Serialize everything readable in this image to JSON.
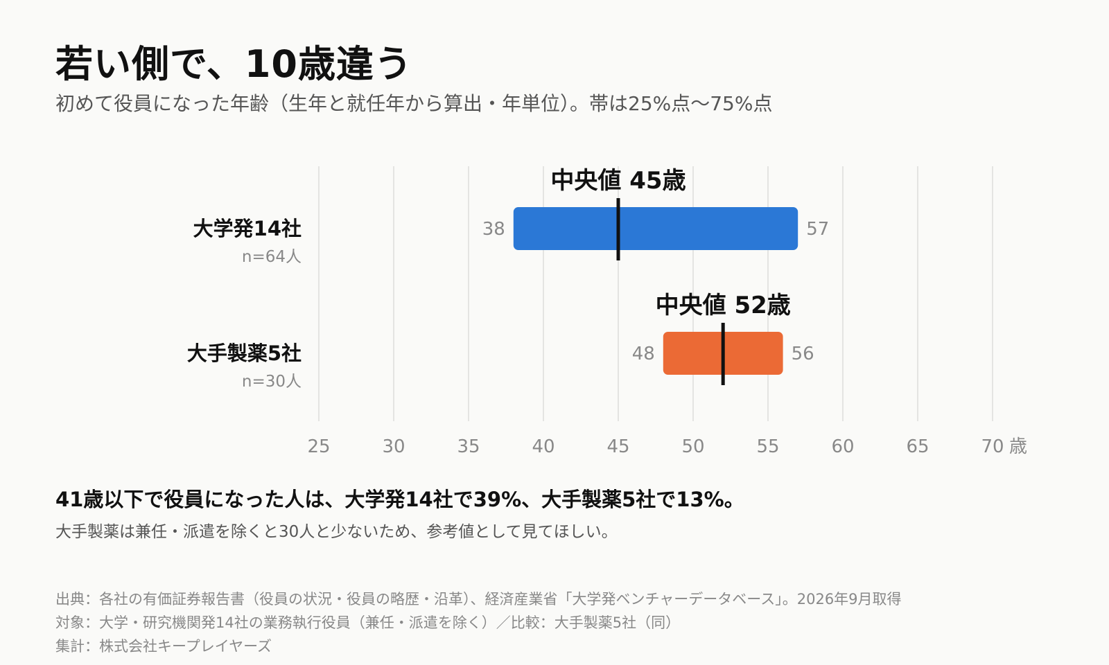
{
  "title": "若い側で、10歳違う",
  "subtitle": "初めて役員になった年齢（生年と就任年から算出・年単位）。帯は25%点〜75%点",
  "chart_data": {
    "type": "range-bar",
    "xlim": [
      25,
      70
    ],
    "x_ticks": [
      25,
      30,
      35,
      40,
      45,
      50,
      55,
      60,
      65,
      70
    ],
    "x_unit": "歳",
    "grid": true,
    "median_prefix": "中央値 ",
    "median_suffix": "歳",
    "series": [
      {
        "name": "大学発14社",
        "n_label": "n=64人",
        "q1": 38,
        "q3": 57,
        "median": 45,
        "color": "#2b78d6"
      },
      {
        "name": "大手製薬5社",
        "n_label": "n=30人",
        "q1": 48,
        "q3": 56,
        "median": 52,
        "color": "#eb6a35"
      }
    ]
  },
  "note_main": "41歳以下で役員になった人は、大学発14社で39%、大手製薬5社で13%。",
  "note_sub": "大手製薬は兼任・派遣を除くと30人と少ないため、参考値として見てほしい。",
  "footer": [
    "出典：各社の有価証券報告書（役員の状況・役員の略歴・沿革）、経済産業省「大学発ベンチャーデータベース」。2026年9月取得",
    "対象：大学・研究機関発14社の業務執行役員（兼任・派遣を除く）／比較：大手製薬5社（同）",
    "集計：株式会社キープレイヤーズ"
  ]
}
